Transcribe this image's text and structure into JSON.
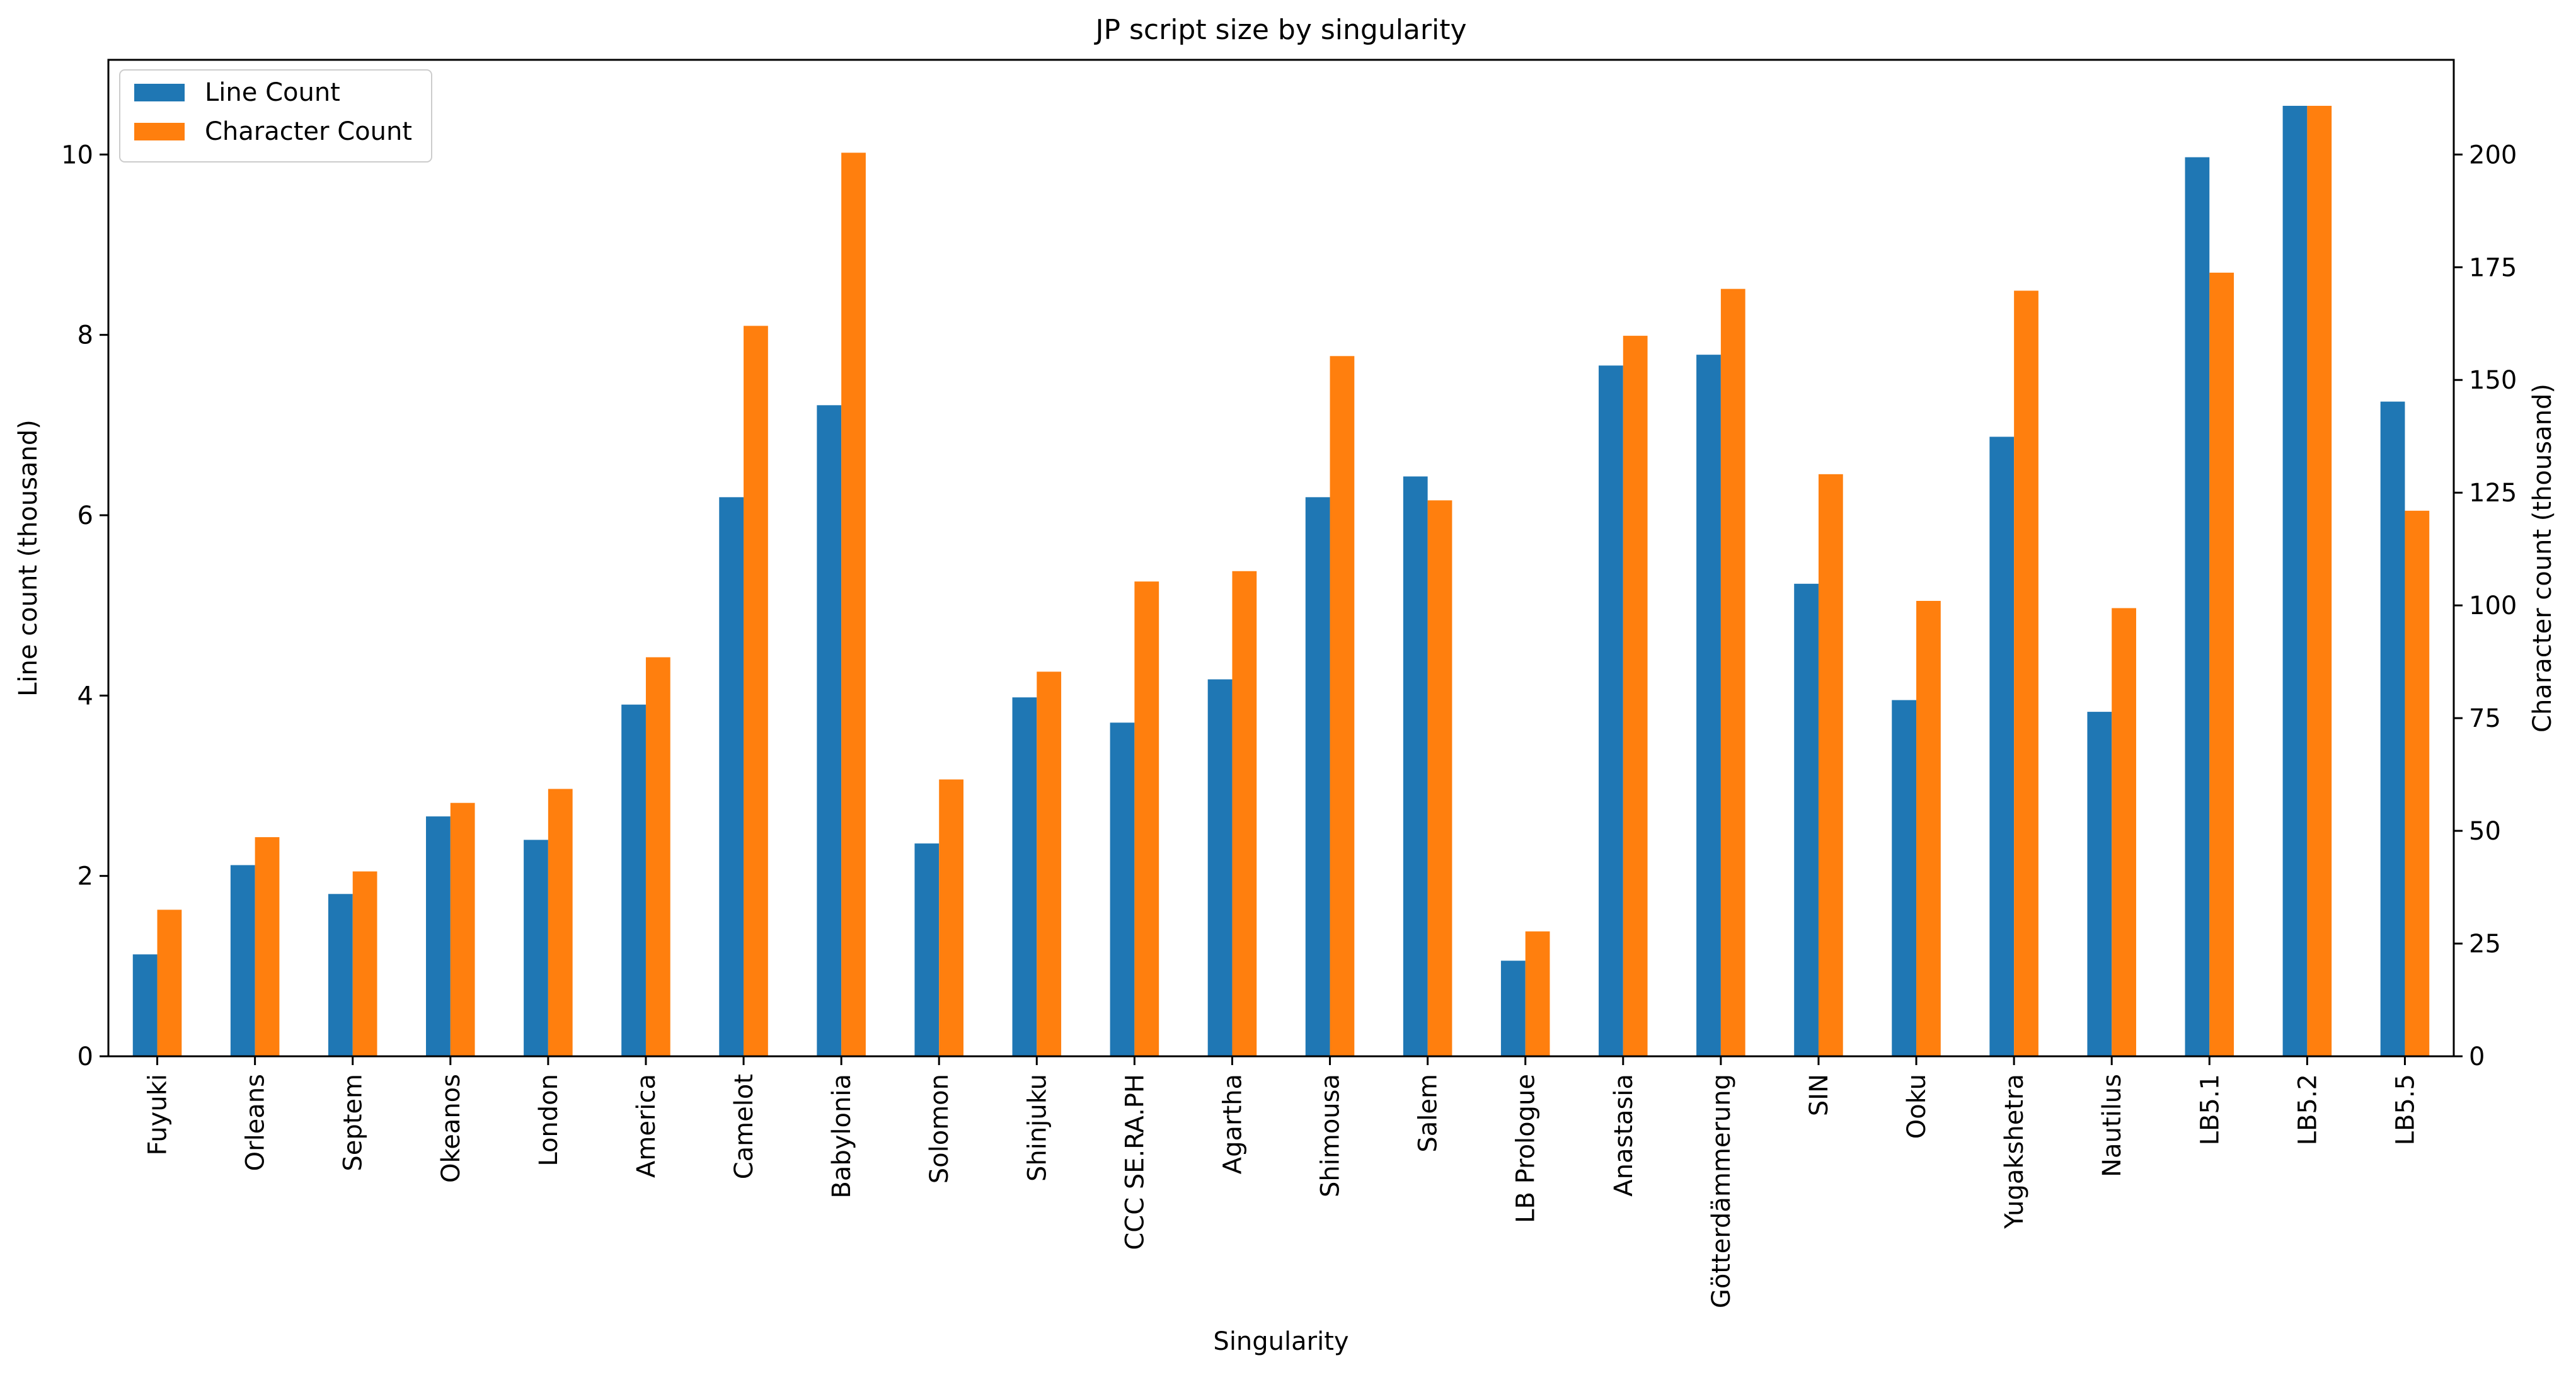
{
  "chart_data": {
    "type": "bar",
    "title": "JP script size by singularity",
    "xlabel": "Singularity",
    "ylabel": "Line count (thousand)",
    "ylabel_right": "Character count (thousand)",
    "categories": [
      "Fuyuki",
      "Orleans",
      "Septem",
      "Okeanos",
      "London",
      "America",
      "Camelot",
      "Babylonia",
      "Solomon",
      "Shinjuku",
      "CCC SE.RA.PH",
      "Agartha",
      "Shimousa",
      "Salem",
      "LB Prologue",
      "Anastasia",
      "Götterdämmerung",
      "SIN",
      "Ooku",
      "Yugakshetra",
      "Nautilus",
      "LB5.1",
      "LB5.2",
      "LB5.5"
    ],
    "series": [
      {
        "name": "Line Count",
        "axis": "left",
        "color": "#1f77b4",
        "values": [
          1.13,
          2.12,
          1.8,
          2.66,
          2.4,
          3.9,
          6.2,
          7.22,
          2.36,
          3.98,
          3.7,
          4.18,
          6.2,
          6.43,
          1.06,
          7.66,
          7.78,
          5.24,
          3.95,
          6.87,
          3.82,
          9.97,
          10.54,
          7.26
        ]
      },
      {
        "name": "Character Count",
        "axis": "right",
        "color": "#ff7f0e",
        "values": [
          32.5,
          48.6,
          41.0,
          56.2,
          59.3,
          88.5,
          162.0,
          200.4,
          61.4,
          85.3,
          105.3,
          107.6,
          155.3,
          123.3,
          27.7,
          159.8,
          170.2,
          129.1,
          101.0,
          169.8,
          99.4,
          173.8,
          210.8,
          121.0
        ]
      }
    ],
    "ylim": [
      0,
      11.05
    ],
    "ylim_right": [
      0,
      221.0
    ],
    "yticks": [
      0,
      2,
      4,
      6,
      8,
      10
    ],
    "yticks_right": [
      0,
      25,
      50,
      75,
      100,
      125,
      150,
      175,
      200
    ],
    "grid": false,
    "legend_position": "top-left"
  }
}
